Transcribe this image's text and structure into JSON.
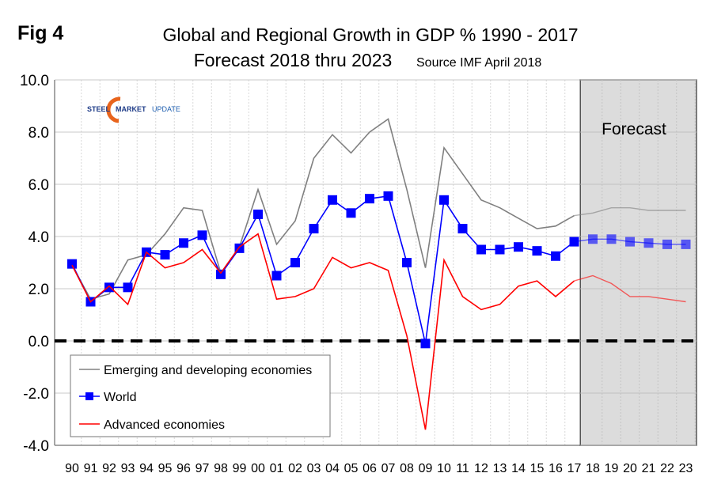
{
  "figure_label": "Fig 4",
  "logo": {
    "part1": "STEEL",
    "part2": "MARKET",
    "part3": "UPDATE"
  },
  "forecast_label": "Forecast",
  "chart_data": {
    "type": "line",
    "title": "Global and Regional Growth in GDP % 1990 - 2017",
    "subtitle": "Forecast 2018 thru 2023",
    "source": "Source IMF April 2018",
    "xlabel": "",
    "ylabel": "",
    "ylim": [
      -4.0,
      10.0
    ],
    "yticks": [
      "10.0",
      "8.0",
      "6.0",
      "4.0",
      "2.0",
      "0.0",
      "-2.0",
      "-4.0"
    ],
    "ytick_values": [
      10,
      8,
      6,
      4,
      2,
      0,
      -2,
      -4
    ],
    "grid": true,
    "legend_position": "bottom-left",
    "forecast_start": "18",
    "categories": [
      "90",
      "91",
      "92",
      "93",
      "94",
      "95",
      "96",
      "97",
      "98",
      "99",
      "00",
      "01",
      "02",
      "03",
      "04",
      "05",
      "06",
      "07",
      "08",
      "09",
      "10",
      "11",
      "12",
      "13",
      "14",
      "15",
      "16",
      "17",
      "18",
      "19",
      "20",
      "21",
      "22",
      "23"
    ],
    "series": [
      {
        "name": "Emerging and developing economies",
        "color": "#808080",
        "marker": "none",
        "values": [
          2.9,
          1.6,
          1.8,
          3.1,
          3.3,
          4.1,
          5.1,
          5.0,
          2.6,
          3.6,
          5.8,
          3.7,
          4.6,
          7.0,
          7.9,
          7.2,
          8.0,
          8.5,
          5.8,
          2.8,
          7.4,
          6.4,
          5.4,
          5.1,
          4.7,
          4.3,
          4.4,
          4.8,
          4.9,
          5.1,
          5.1,
          5.0,
          5.0,
          5.0
        ]
      },
      {
        "name": "World",
        "color": "#0000ff",
        "marker": "square",
        "values": [
          2.95,
          1.5,
          2.05,
          2.05,
          3.4,
          3.3,
          3.75,
          4.05,
          2.55,
          3.55,
          4.85,
          2.5,
          3.0,
          4.3,
          5.4,
          4.9,
          5.45,
          5.55,
          3.0,
          -0.1,
          5.4,
          4.3,
          3.5,
          3.5,
          3.6,
          3.45,
          3.25,
          3.8,
          3.9,
          3.9,
          3.8,
          3.75,
          3.7,
          3.7
        ]
      },
      {
        "name": "Advanced economies",
        "color": "#ff0000",
        "marker": "none",
        "values": [
          2.9,
          1.5,
          2.1,
          1.4,
          3.4,
          2.8,
          3.0,
          3.5,
          2.6,
          3.6,
          4.1,
          1.6,
          1.7,
          2.0,
          3.2,
          2.8,
          3.0,
          2.7,
          0.2,
          -3.4,
          3.1,
          1.7,
          1.2,
          1.4,
          2.1,
          2.3,
          1.7,
          2.3,
          2.5,
          2.2,
          1.7,
          1.7,
          1.6,
          1.5
        ]
      }
    ]
  }
}
